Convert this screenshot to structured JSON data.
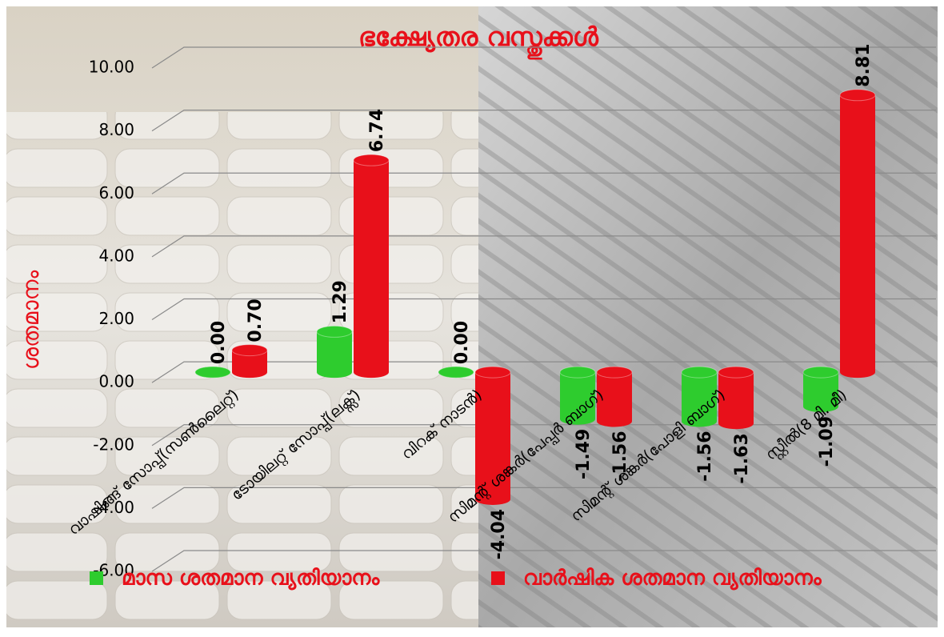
{
  "chart_data": {
    "type": "bar3d",
    "title": "ഭക്ഷ്യേതര വസ്തുക്കൾ",
    "y_label": "ശതമാനം",
    "categories": [
      "വാഷിങ്ങ് സോപ്പ്(സൺലൈറ്റ്)",
      "ടോയിലറ്റ് സോപ്പ്(ലക്സ്)",
      "വിറക് നാടൻ)",
      "സിമന്റ് ശങ്കർ(പേപ്പർ ബാഗ്)",
      "സിമന്റ് ശങ്കർ(പോളി ബാഗ്)",
      "സ്റ്റീൽ(8 മി. മീ)"
    ],
    "series": [
      {
        "name": "മാസ ശതമാന വ്യതിയാനം",
        "color": "#2ecc2e",
        "values": [
          0,
          1.29,
          0,
          -1.49,
          -1.56,
          -1.09
        ],
        "value_labels": [
          "0.00",
          "1.29",
          "0.00",
          "-1.49",
          "-1.56",
          "-1.09"
        ]
      },
      {
        "name": "വാർഷിക ശതമാന വ്യതിയാനം",
        "color": "#e8101a",
        "values": [
          0.7,
          6.74,
          -4.04,
          -1.56,
          -1.63,
          8.81
        ],
        "value_labels": [
          "0.70",
          "6.74",
          "-4.04",
          "-1.56",
          "-1.63",
          "8.81"
        ]
      }
    ],
    "ylim": [
      -6,
      10
    ],
    "yticks": [
      {
        "value": -6,
        "label": "-6.00"
      },
      {
        "value": -4,
        "label": "-4.00"
      },
      {
        "value": -2,
        "label": "-2.00"
      },
      {
        "value": 0,
        "label": "0.00"
      },
      {
        "value": 2,
        "label": "2.00"
      },
      {
        "value": 4,
        "label": "4.00"
      },
      {
        "value": 6,
        "label": "6.00"
      },
      {
        "value": 8,
        "label": "8.00"
      },
      {
        "value": 10,
        "label": "10.00"
      }
    ],
    "grid": true
  }
}
